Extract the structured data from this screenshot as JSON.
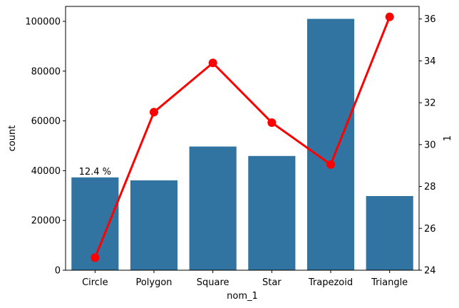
{
  "chart_data": {
    "type": "bar",
    "categories": [
      "Circle",
      "Polygon",
      "Square",
      "Star",
      "Trapezoid",
      "Triangle"
    ],
    "series": [
      {
        "axis": "left",
        "kind": "bar",
        "color": "#3274a1",
        "values": [
          37300,
          36100,
          49700,
          45900,
          101000,
          29800
        ]
      },
      {
        "axis": "right",
        "kind": "line",
        "color": "#ff0000",
        "values": [
          24.6,
          31.55,
          33.9,
          31.05,
          29.05,
          36.1
        ]
      }
    ],
    "xlabel": "nom_1",
    "ylabel": "count",
    "y2label": "1",
    "ylim": [
      0,
      106000
    ],
    "y2lim": [
      24,
      36.6
    ],
    "yticks": [
      0,
      20000,
      40000,
      60000,
      80000,
      100000
    ],
    "y2ticks": [
      24,
      26,
      28,
      30,
      32,
      34,
      36
    ],
    "annotations": [
      {
        "category": "Circle",
        "text": "12.4 %"
      }
    ],
    "grid": false,
    "legend": "none"
  }
}
